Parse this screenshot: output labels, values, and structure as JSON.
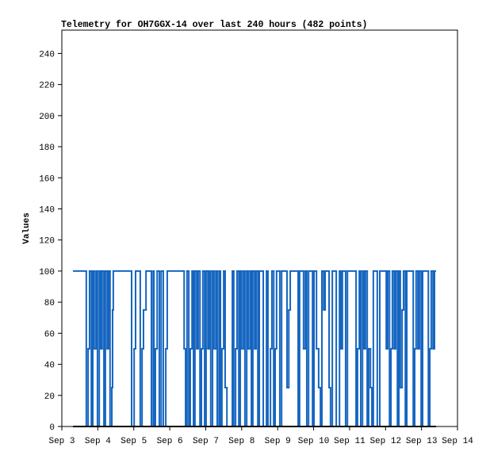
{
  "chart_data": {
    "type": "line",
    "step": true,
    "title": "Telemetry for OH7GGX-14 over last 240 hours (482 points)",
    "y_label": "Values",
    "xlim": [
      3,
      14
    ],
    "xticks": [
      {
        "value": 3,
        "label": "Sep 3"
      },
      {
        "value": 4,
        "label": "Sep 4"
      },
      {
        "value": 5,
        "label": "Sep 5"
      },
      {
        "value": 6,
        "label": "Sep 6"
      },
      {
        "value": 7,
        "label": "Sep 7"
      },
      {
        "value": 8,
        "label": "Sep 8"
      },
      {
        "value": 9,
        "label": "Sep 9"
      },
      {
        "value": 10,
        "label": "Sep 10"
      },
      {
        "value": 11,
        "label": "Sep 11"
      },
      {
        "value": 12,
        "label": "Sep 12"
      },
      {
        "value": 13,
        "label": "Sep 13"
      },
      {
        "value": 14,
        "label": "Sep 14"
      }
    ],
    "ylim": [
      0,
      255
    ],
    "yticks": [
      0,
      20,
      40,
      60,
      80,
      100,
      120,
      140,
      160,
      180,
      200,
      220,
      240
    ],
    "series": [
      {
        "color": "#1565c0",
        "x": [
          3.33,
          3.68,
          3.73,
          3.77,
          3.82,
          3.86,
          3.9,
          3.95,
          3.99,
          4.04,
          4.08,
          4.12,
          4.17,
          4.21,
          4.26,
          4.3,
          4.34,
          4.39,
          4.41,
          4.43,
          4.94,
          5.01,
          5.05,
          5.18,
          5.23,
          5.27,
          5.34,
          5.49,
          5.54,
          5.56,
          5.6,
          5.65,
          5.71,
          5.76,
          5.82,
          5.89,
          5.93,
          6.4,
          6.44,
          6.48,
          6.53,
          6.57,
          6.62,
          6.66,
          6.7,
          6.75,
          6.79,
          6.84,
          6.88,
          6.92,
          6.97,
          7.01,
          7.06,
          7.1,
          7.14,
          7.19,
          7.23,
          7.28,
          7.32,
          7.37,
          7.41,
          7.45,
          7.5,
          7.54,
          7.59,
          7.74,
          7.78,
          7.83,
          7.87,
          7.92,
          7.96,
          8.0,
          8.05,
          8.09,
          8.14,
          8.18,
          8.23,
          8.27,
          8.31,
          8.36,
          8.4,
          8.45,
          8.49,
          8.6,
          8.69,
          8.73,
          8.8,
          8.84,
          8.89,
          8.93,
          8.97,
          9.06,
          9.11,
          9.26,
          9.31,
          9.35,
          9.57,
          9.61,
          9.72,
          9.77,
          9.81,
          9.86,
          9.97,
          10.01,
          10.08,
          10.14,
          10.19,
          10.23,
          10.28,
          10.32,
          10.43,
          10.47,
          10.52,
          10.63,
          10.72,
          10.76,
          10.8,
          10.89,
          10.94,
          11.18,
          11.22,
          11.27,
          11.31,
          11.36,
          11.4,
          11.44,
          11.49,
          11.53,
          11.58,
          11.62,
          11.66,
          11.77,
          11.84,
          12.02,
          12.06,
          12.11,
          12.15,
          12.19,
          12.24,
          12.28,
          12.33,
          12.37,
          12.41,
          12.46,
          12.5,
          12.55,
          12.59,
          12.77,
          12.81,
          12.85,
          12.9,
          12.94,
          12.99,
          13.03,
          13.19,
          13.23,
          13.27,
          13.32,
          13.36
        ],
        "values": [
          100,
          0,
          50,
          100,
          0,
          100,
          50,
          100,
          0,
          100,
          50,
          100,
          0,
          100,
          50,
          100,
          0,
          25,
          75,
          100,
          0,
          50,
          100,
          0,
          50,
          75,
          100,
          0,
          100,
          0,
          50,
          100,
          0,
          100,
          0,
          50,
          100,
          50,
          0,
          100,
          0,
          50,
          100,
          0,
          100,
          50,
          100,
          0,
          50,
          100,
          0,
          100,
          50,
          100,
          0,
          100,
          50,
          100,
          0,
          100,
          0,
          50,
          100,
          25,
          0,
          100,
          0,
          50,
          100,
          0,
          100,
          50,
          100,
          0,
          100,
          50,
          100,
          0,
          100,
          50,
          100,
          0,
          100,
          0,
          100,
          0,
          50,
          100,
          0,
          50,
          100,
          0,
          100,
          25,
          75,
          100,
          0,
          100,
          50,
          100,
          0,
          100,
          0,
          100,
          50,
          25,
          0,
          100,
          75,
          100,
          25,
          0,
          100,
          0,
          100,
          50,
          100,
          0,
          100,
          0,
          50,
          100,
          0,
          100,
          50,
          100,
          0,
          50,
          25,
          0,
          100,
          0,
          100,
          50,
          100,
          0,
          50,
          100,
          50,
          100,
          0,
          100,
          25,
          75,
          100,
          0,
          100,
          0,
          50,
          100,
          50,
          100,
          0,
          100,
          0,
          50,
          100,
          50,
          100
        ]
      },
      {
        "color": "#000000",
        "x": [
          3.33,
          13.36
        ],
        "values": [
          0,
          0
        ]
      }
    ]
  }
}
